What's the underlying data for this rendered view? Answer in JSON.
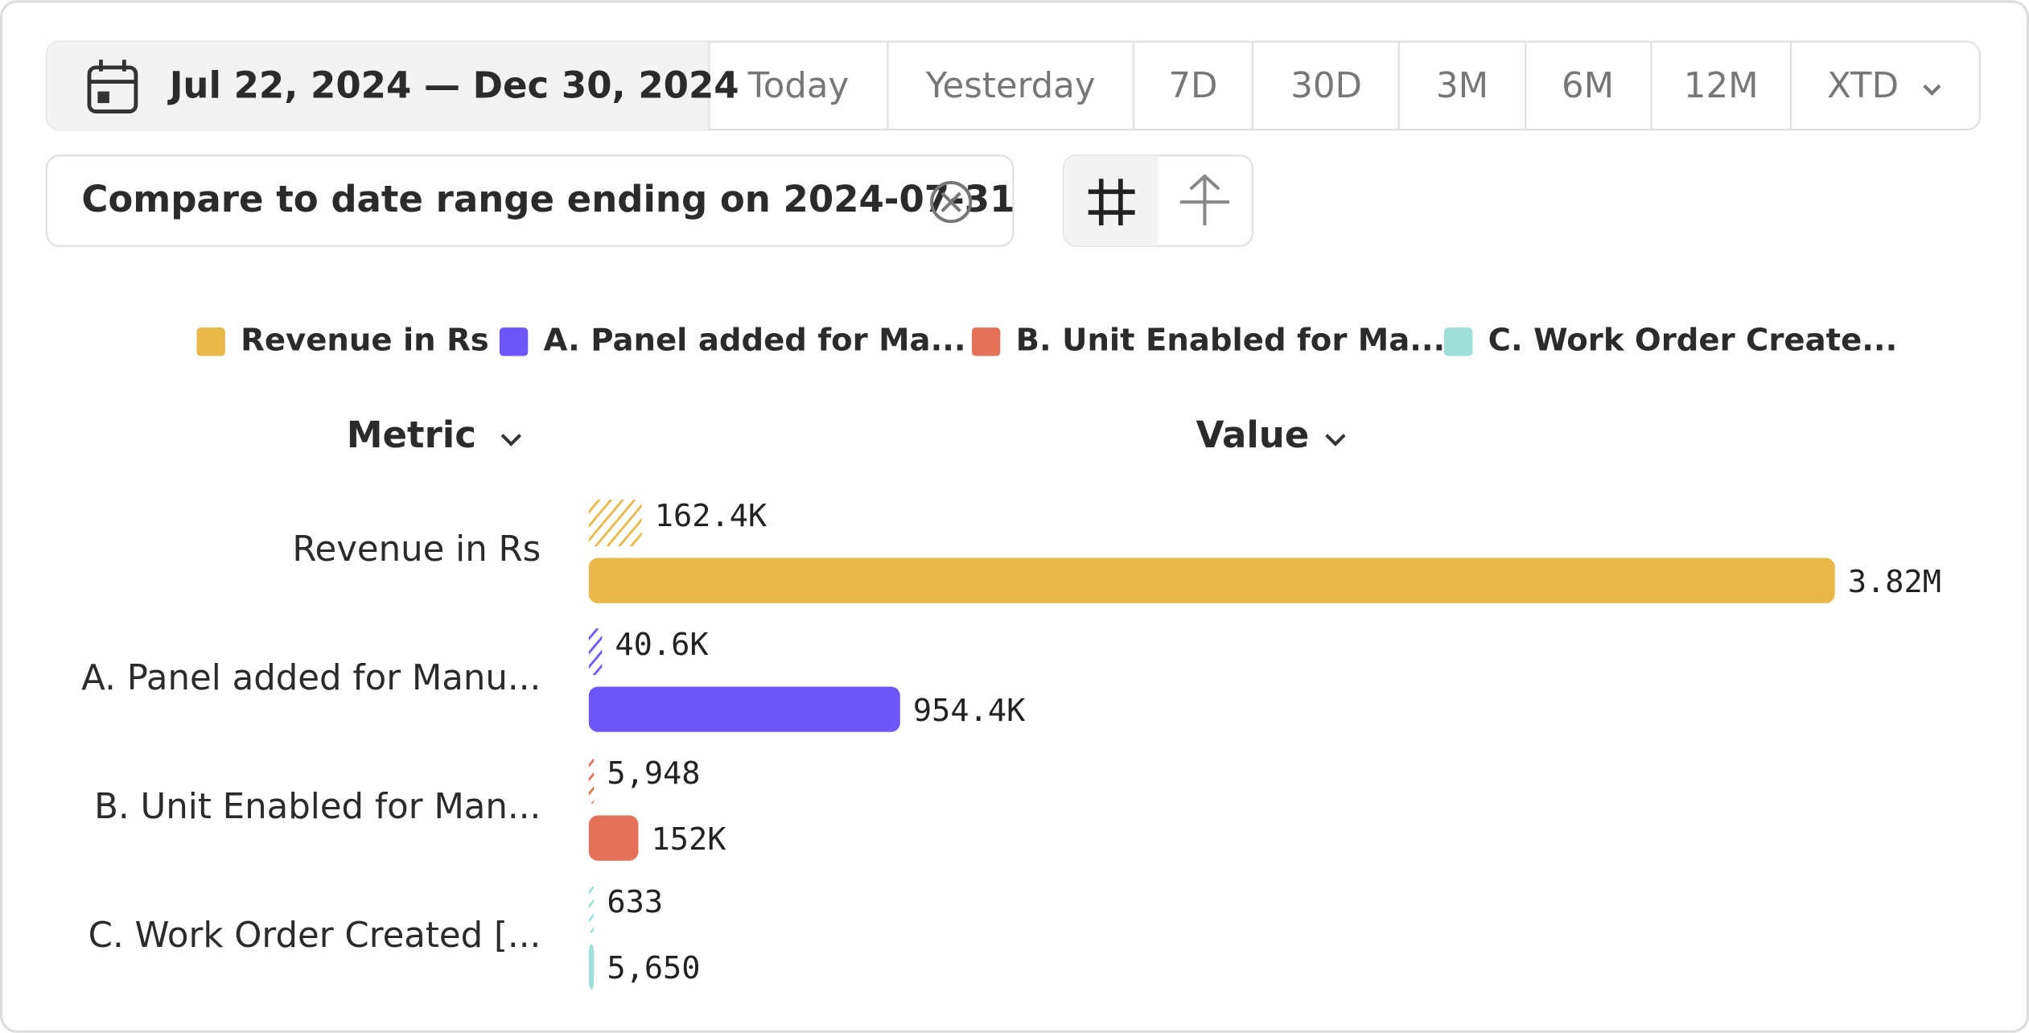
{
  "toolbar": {
    "date_range": "Jul 22, 2024 — Dec 30, 2024",
    "presets": [
      "Today",
      "Yesterday",
      "7D",
      "30D",
      "3M",
      "6M",
      "12M",
      "XTD"
    ]
  },
  "compare": {
    "label": "Compare to date range ending on 2024-07-31"
  },
  "chart_data": {
    "type": "bar",
    "orientation": "horizontal",
    "legend": [
      {
        "name": "Revenue in Rs",
        "color": "#e8b94a"
      },
      {
        "name": "A. Panel added for Ma...",
        "color": "#6e56f8"
      },
      {
        "name": "B. Unit Enabled for Ma...",
        "color": "#e4725a"
      },
      {
        "name": "C. Work Order Create...",
        "color": "#9ee0d8"
      }
    ],
    "column_headers": [
      "Metric",
      "Value"
    ],
    "categories": [
      "Revenue in Rs",
      "A. Panel added for Manu...",
      "B. Unit Enabled for Man...",
      "C. Work Order Created [..."
    ],
    "values": [
      3820000,
      954400,
      152000,
      5650
    ],
    "value_labels": [
      "3.82M",
      "954.4K",
      "152K",
      "5,650"
    ],
    "compare_values": [
      162400,
      40600,
      5948,
      633
    ],
    "compare_value_labels": [
      "162.4K",
      "40.6K",
      "5,948",
      "633"
    ]
  }
}
